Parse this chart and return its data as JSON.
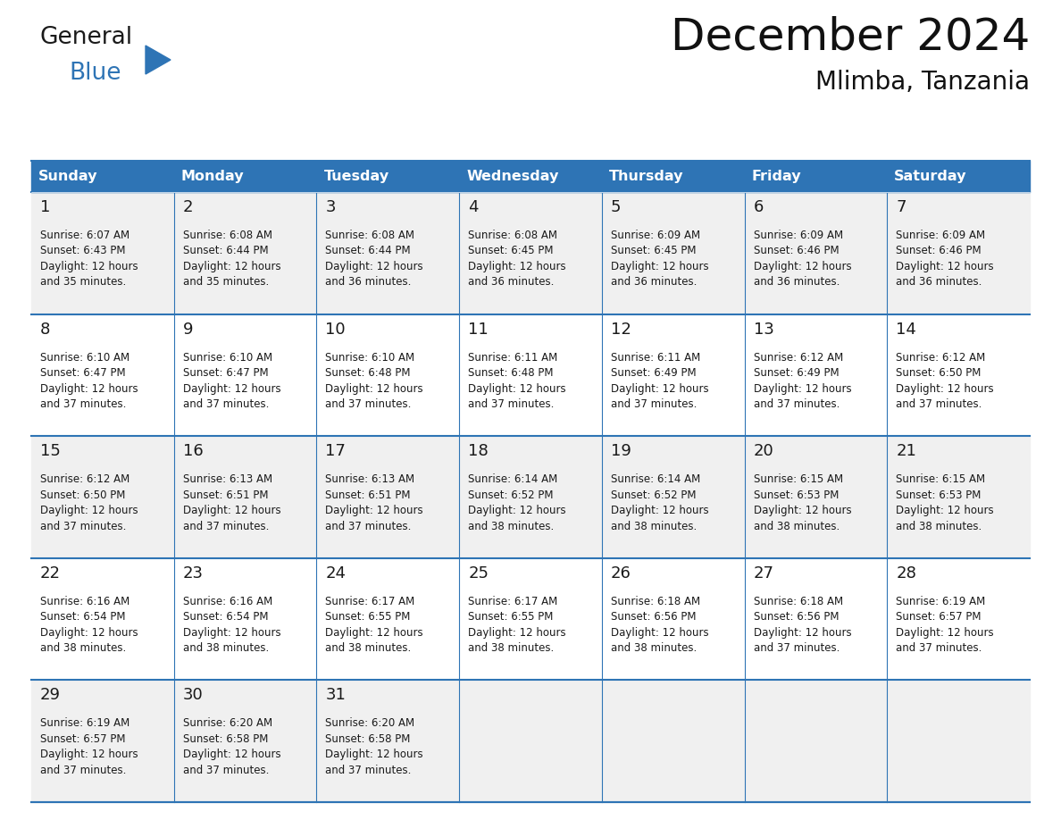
{
  "title": "December 2024",
  "subtitle": "Mlimba, Tanzania",
  "header_color": "#2E74B5",
  "header_text_color": "#FFFFFF",
  "days_of_week": [
    "Sunday",
    "Monday",
    "Tuesday",
    "Wednesday",
    "Thursday",
    "Friday",
    "Saturday"
  ],
  "row_alt_color": "#F0F0F0",
  "row_color": "#FFFFFF",
  "line_color": "#2E74B5",
  "text_color": "#1a1a1a",
  "logo_general_color": "#1a1a1a",
  "logo_blue_color": "#2E74B5",
  "calendar_data": [
    [
      {
        "day": 1,
        "sunrise": "6:07 AM",
        "sunset": "6:43 PM",
        "daylight_hours": 12,
        "daylight_minutes": 35
      },
      {
        "day": 2,
        "sunrise": "6:08 AM",
        "sunset": "6:44 PM",
        "daylight_hours": 12,
        "daylight_minutes": 35
      },
      {
        "day": 3,
        "sunrise": "6:08 AM",
        "sunset": "6:44 PM",
        "daylight_hours": 12,
        "daylight_minutes": 36
      },
      {
        "day": 4,
        "sunrise": "6:08 AM",
        "sunset": "6:45 PM",
        "daylight_hours": 12,
        "daylight_minutes": 36
      },
      {
        "day": 5,
        "sunrise": "6:09 AM",
        "sunset": "6:45 PM",
        "daylight_hours": 12,
        "daylight_minutes": 36
      },
      {
        "day": 6,
        "sunrise": "6:09 AM",
        "sunset": "6:46 PM",
        "daylight_hours": 12,
        "daylight_minutes": 36
      },
      {
        "day": 7,
        "sunrise": "6:09 AM",
        "sunset": "6:46 PM",
        "daylight_hours": 12,
        "daylight_minutes": 36
      }
    ],
    [
      {
        "day": 8,
        "sunrise": "6:10 AM",
        "sunset": "6:47 PM",
        "daylight_hours": 12,
        "daylight_minutes": 37
      },
      {
        "day": 9,
        "sunrise": "6:10 AM",
        "sunset": "6:47 PM",
        "daylight_hours": 12,
        "daylight_minutes": 37
      },
      {
        "day": 10,
        "sunrise": "6:10 AM",
        "sunset": "6:48 PM",
        "daylight_hours": 12,
        "daylight_minutes": 37
      },
      {
        "day": 11,
        "sunrise": "6:11 AM",
        "sunset": "6:48 PM",
        "daylight_hours": 12,
        "daylight_minutes": 37
      },
      {
        "day": 12,
        "sunrise": "6:11 AM",
        "sunset": "6:49 PM",
        "daylight_hours": 12,
        "daylight_minutes": 37
      },
      {
        "day": 13,
        "sunrise": "6:12 AM",
        "sunset": "6:49 PM",
        "daylight_hours": 12,
        "daylight_minutes": 37
      },
      {
        "day": 14,
        "sunrise": "6:12 AM",
        "sunset": "6:50 PM",
        "daylight_hours": 12,
        "daylight_minutes": 37
      }
    ],
    [
      {
        "day": 15,
        "sunrise": "6:12 AM",
        "sunset": "6:50 PM",
        "daylight_hours": 12,
        "daylight_minutes": 37
      },
      {
        "day": 16,
        "sunrise": "6:13 AM",
        "sunset": "6:51 PM",
        "daylight_hours": 12,
        "daylight_minutes": 37
      },
      {
        "day": 17,
        "sunrise": "6:13 AM",
        "sunset": "6:51 PM",
        "daylight_hours": 12,
        "daylight_minutes": 37
      },
      {
        "day": 18,
        "sunrise": "6:14 AM",
        "sunset": "6:52 PM",
        "daylight_hours": 12,
        "daylight_minutes": 38
      },
      {
        "day": 19,
        "sunrise": "6:14 AM",
        "sunset": "6:52 PM",
        "daylight_hours": 12,
        "daylight_minutes": 38
      },
      {
        "day": 20,
        "sunrise": "6:15 AM",
        "sunset": "6:53 PM",
        "daylight_hours": 12,
        "daylight_minutes": 38
      },
      {
        "day": 21,
        "sunrise": "6:15 AM",
        "sunset": "6:53 PM",
        "daylight_hours": 12,
        "daylight_minutes": 38
      }
    ],
    [
      {
        "day": 22,
        "sunrise": "6:16 AM",
        "sunset": "6:54 PM",
        "daylight_hours": 12,
        "daylight_minutes": 38
      },
      {
        "day": 23,
        "sunrise": "6:16 AM",
        "sunset": "6:54 PM",
        "daylight_hours": 12,
        "daylight_minutes": 38
      },
      {
        "day": 24,
        "sunrise": "6:17 AM",
        "sunset": "6:55 PM",
        "daylight_hours": 12,
        "daylight_minutes": 38
      },
      {
        "day": 25,
        "sunrise": "6:17 AM",
        "sunset": "6:55 PM",
        "daylight_hours": 12,
        "daylight_minutes": 38
      },
      {
        "day": 26,
        "sunrise": "6:18 AM",
        "sunset": "6:56 PM",
        "daylight_hours": 12,
        "daylight_minutes": 38
      },
      {
        "day": 27,
        "sunrise": "6:18 AM",
        "sunset": "6:56 PM",
        "daylight_hours": 12,
        "daylight_minutes": 37
      },
      {
        "day": 28,
        "sunrise": "6:19 AM",
        "sunset": "6:57 PM",
        "daylight_hours": 12,
        "daylight_minutes": 37
      }
    ],
    [
      {
        "day": 29,
        "sunrise": "6:19 AM",
        "sunset": "6:57 PM",
        "daylight_hours": 12,
        "daylight_minutes": 37
      },
      {
        "day": 30,
        "sunrise": "6:20 AM",
        "sunset": "6:58 PM",
        "daylight_hours": 12,
        "daylight_minutes": 37
      },
      {
        "day": 31,
        "sunrise": "6:20 AM",
        "sunset": "6:58 PM",
        "daylight_hours": 12,
        "daylight_minutes": 37
      },
      null,
      null,
      null,
      null
    ]
  ],
  "num_rows": 5,
  "num_cols": 7,
  "fig_width": 11.88,
  "fig_height": 9.18,
  "dpi": 100
}
